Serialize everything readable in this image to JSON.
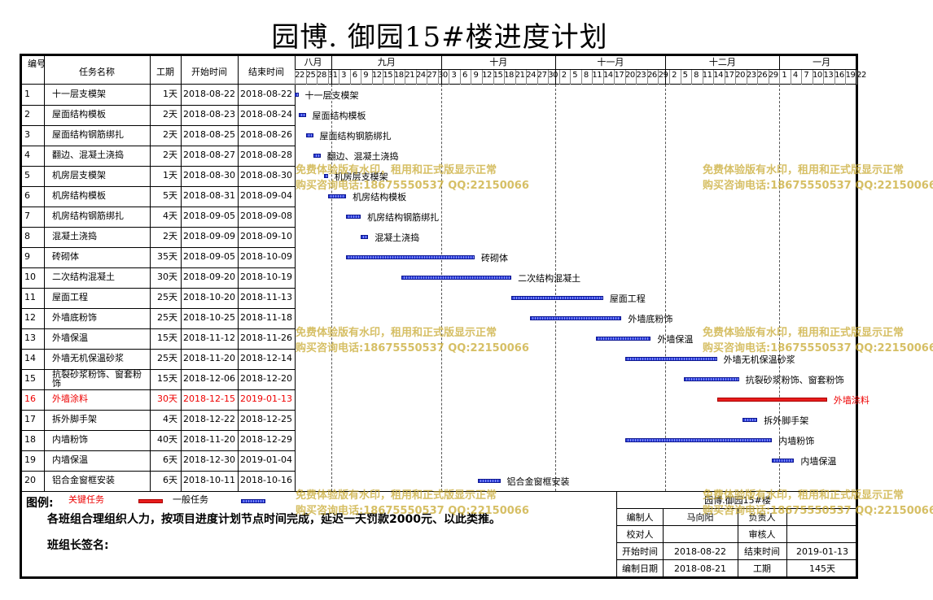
{
  "title": "园博. 御园15#楼进度计划",
  "headers": {
    "no": "编号",
    "name": "任务名称",
    "dur": "工期",
    "start": "开始时间",
    "end": "结束时间"
  },
  "months": [
    "八月",
    "九月",
    "十月",
    "十一月",
    "十二月",
    "一月"
  ],
  "days": [
    "22",
    "25",
    "28",
    "31",
    "3",
    "6",
    "9",
    "12",
    "15",
    "18",
    "21",
    "24",
    "27",
    "30",
    "3",
    "6",
    "9",
    "12",
    "15",
    "18",
    "21",
    "24",
    "27",
    "30",
    "2",
    "5",
    "8",
    "11",
    "14",
    "17",
    "20",
    "23",
    "26",
    "29",
    "2",
    "5",
    "8",
    "11",
    "14",
    "17",
    "20",
    "23",
    "26",
    "29",
    "1",
    "4",
    "7",
    "10",
    "13",
    "16",
    "19",
    "22"
  ],
  "tasks": [
    {
      "no": "1",
      "name": "十一层支模架",
      "dur": "1天",
      "start": "2018-08-22",
      "end": "2018-08-22",
      "critical": false
    },
    {
      "no": "2",
      "name": "屋面结构模板",
      "dur": "2天",
      "start": "2018-08-23",
      "end": "2018-08-24",
      "critical": false
    },
    {
      "no": "3",
      "name": "屋面结构钢筋绑扎",
      "dur": "2天",
      "start": "2018-08-25",
      "end": "2018-08-26",
      "critical": false
    },
    {
      "no": "4",
      "name": "翻边、混凝土浇捣",
      "dur": "2天",
      "start": "2018-08-27",
      "end": "2018-08-28",
      "critical": false
    },
    {
      "no": "5",
      "name": "机房层支模架",
      "dur": "1天",
      "start": "2018-08-30",
      "end": "2018-08-30",
      "critical": false
    },
    {
      "no": "6",
      "name": "机房结构模板",
      "dur": "5天",
      "start": "2018-08-31",
      "end": "2018-09-04",
      "critical": false
    },
    {
      "no": "7",
      "name": "机房结构钢筋绑扎",
      "dur": "4天",
      "start": "2018-09-05",
      "end": "2018-09-08",
      "critical": false
    },
    {
      "no": "8",
      "name": "混凝土浇捣",
      "dur": "2天",
      "start": "2018-09-09",
      "end": "2018-09-10",
      "critical": false
    },
    {
      "no": "9",
      "name": "砖砌体",
      "dur": "35天",
      "start": "2018-09-05",
      "end": "2018-10-09",
      "critical": false
    },
    {
      "no": "10",
      "name": "二次结构混凝土",
      "dur": "30天",
      "start": "2018-09-20",
      "end": "2018-10-19",
      "critical": false
    },
    {
      "no": "11",
      "name": "屋面工程",
      "dur": "25天",
      "start": "2018-10-20",
      "end": "2018-11-13",
      "critical": false
    },
    {
      "no": "12",
      "name": "外墙底粉饰",
      "dur": "25天",
      "start": "2018-10-25",
      "end": "2018-11-18",
      "critical": false
    },
    {
      "no": "13",
      "name": "外墙保温",
      "dur": "15天",
      "start": "2018-11-12",
      "end": "2018-11-26",
      "critical": false
    },
    {
      "no": "14",
      "name": "外墙无机保温砂浆",
      "dur": "25天",
      "start": "2018-11-20",
      "end": "2018-12-14",
      "critical": false
    },
    {
      "no": "15",
      "name": "抗裂砂浆粉饰、窗套粉饰",
      "dur": "15天",
      "start": "2018-12-06",
      "end": "2018-12-20",
      "critical": false
    },
    {
      "no": "16",
      "name": "外墙涂料",
      "dur": "30天",
      "start": "2018-12-15",
      "end": "2019-01-13",
      "critical": true
    },
    {
      "no": "17",
      "name": "拆外脚手架",
      "dur": "4天",
      "start": "2018-12-22",
      "end": "2018-12-25",
      "critical": false
    },
    {
      "no": "18",
      "name": "内墙粉饰",
      "dur": "40天",
      "start": "2018-11-20",
      "end": "2018-12-29",
      "critical": false
    },
    {
      "no": "19",
      "name": "内墙保温",
      "dur": "6天",
      "start": "2018-12-30",
      "end": "2019-01-04",
      "critical": false
    },
    {
      "no": "20",
      "name": "铝合金窗框安装",
      "dur": "6天",
      "start": "2018-10-11",
      "end": "2018-10-16",
      "critical": false
    }
  ],
  "legend": {
    "label": "图例:",
    "critical": "关键任务",
    "normal": "一般任务",
    "critical_color": "#e81d1d",
    "normal_color": "#2e3fd8"
  },
  "note": "各班组合理组织人力，按项目进度计划节点时间完成，延迟一天罚款2000元、以此类推。",
  "sign": "班组长签名:",
  "info": {
    "project": "园博.御园15#楼",
    "editor_label": "编制人",
    "editor": "马向阳",
    "owner_label": "负责人",
    "owner": "",
    "checker_label": "校对人",
    "checker": "",
    "reviewer_label": "审核人",
    "reviewer": "",
    "start_label": "开始时间",
    "start": "2018-08-22",
    "end_label": "结束时间",
    "end": "2019-01-13",
    "date_label": "编制日期",
    "date": "2018-08-21",
    "dur_label": "工期",
    "dur": "145天"
  },
  "watermark": {
    "line1": "免费体验版有水印，租用和正式版显示正常",
    "line2": "购买咨询电话:18675550537 QQ:22150066"
  }
}
